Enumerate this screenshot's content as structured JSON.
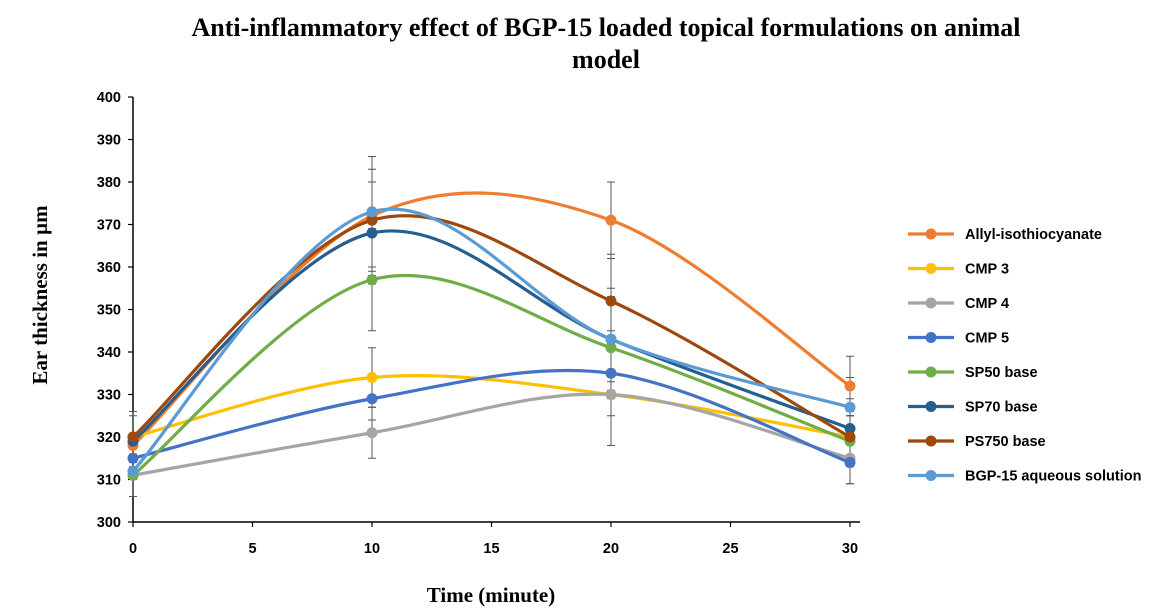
{
  "chart_data": {
    "type": "line",
    "title_lines": [
      "Anti-inflammatory effect of BGP-15 loaded topical formulations on animal",
      "model"
    ],
    "xlabel": "Time (minute)",
    "ylabel": "Ear thickness in µm",
    "x": [
      0,
      10,
      20,
      30
    ],
    "xlim": [
      0,
      30
    ],
    "ylim": [
      300,
      400
    ],
    "xticks": [
      0,
      5,
      10,
      15,
      20,
      25,
      30
    ],
    "yticks": [
      300,
      310,
      320,
      330,
      340,
      350,
      360,
      370,
      380,
      390,
      400
    ],
    "grid": false,
    "legend_position": "right",
    "smooth": true,
    "series": [
      {
        "name": "Allyl-isothiocyanate",
        "color": "#ED7D31",
        "values": [
          318,
          372,
          371,
          332
        ],
        "errors": [
          8,
          14,
          9,
          7
        ]
      },
      {
        "name": "CMP 3",
        "color": "#FFC000",
        "values": [
          320,
          334,
          330,
          320
        ],
        "errors": [
          6,
          7,
          12,
          5
        ]
      },
      {
        "name": "CMP 4",
        "color": "#A5A5A5",
        "values": [
          311,
          321,
          330,
          315
        ],
        "errors": [
          5,
          6,
          12,
          6
        ]
      },
      {
        "name": "CMP 5",
        "color": "#4472C4",
        "values": [
          315,
          329,
          335,
          314
        ],
        "errors": [
          5,
          5,
          10,
          5
        ]
      },
      {
        "name": "SP50 base",
        "color": "#70AD47",
        "values": [
          311,
          357,
          341,
          319
        ],
        "errors": [
          5,
          12,
          12,
          6
        ]
      },
      {
        "name": "SP70 base",
        "color": "#255E91",
        "values": [
          319,
          368,
          343,
          322
        ],
        "errors": [
          6,
          12,
          12,
          7
        ]
      },
      {
        "name": "PS750 base",
        "color": "#9E480E",
        "values": [
          320,
          371,
          352,
          320
        ],
        "errors": [
          6,
          12,
          11,
          6
        ]
      },
      {
        "name": "BGP-15 aqueous solution",
        "color": "#5B9BD5",
        "values": [
          312,
          373,
          343,
          327
        ],
        "errors": [
          6,
          13,
          10,
          7
        ]
      }
    ]
  }
}
